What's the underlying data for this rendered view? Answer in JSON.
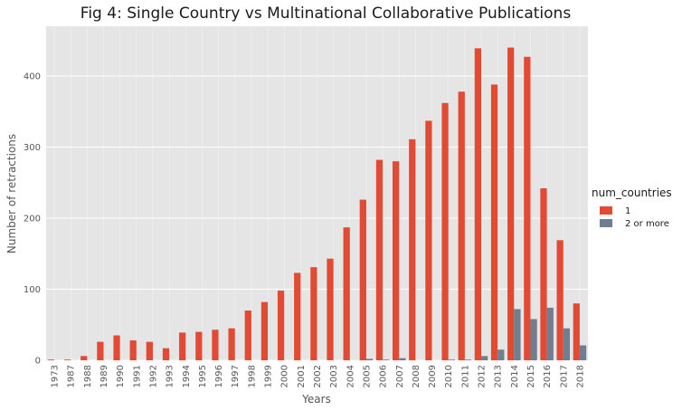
{
  "chart_data": {
    "type": "bar",
    "title": "Fig 4: Single Country vs Multinational Collaborative Publications",
    "xlabel": "Years",
    "ylabel": "Number of retractions",
    "ylim": [
      0,
      470
    ],
    "yticks": [
      0,
      100,
      200,
      300,
      400
    ],
    "grid": true,
    "background": "#e5e5e5",
    "legend": {
      "title": "num_countries",
      "placement": "right"
    },
    "categories": [
      "1973",
      "1987",
      "1988",
      "1989",
      "1990",
      "1991",
      "1992",
      "1993",
      "1994",
      "1995",
      "1996",
      "1997",
      "1998",
      "1999",
      "2000",
      "2001",
      "2002",
      "2003",
      "2004",
      "2005",
      "2006",
      "2007",
      "2008",
      "2009",
      "2010",
      "2011",
      "2012",
      "2013",
      "2014",
      "2015",
      "2016",
      "2017",
      "2018"
    ],
    "series": [
      {
        "name": "1",
        "color": "#e24a33",
        "values": [
          1,
          1,
          6,
          26,
          35,
          28,
          26,
          17,
          39,
          40,
          43,
          45,
          70,
          82,
          98,
          123,
          131,
          143,
          187,
          226,
          282,
          280,
          311,
          337,
          362,
          378,
          439,
          388,
          440,
          427,
          242,
          169,
          80
        ]
      },
      {
        "name": "2 or more",
        "color": "#707f8f",
        "values": [
          0,
          0,
          0,
          0,
          0,
          0,
          0,
          0,
          0,
          0,
          0,
          0,
          0,
          0,
          0,
          0,
          0,
          0,
          0,
          2,
          1,
          3,
          0,
          0,
          1,
          1,
          6,
          15,
          72,
          58,
          74,
          45,
          21
        ]
      }
    ]
  }
}
